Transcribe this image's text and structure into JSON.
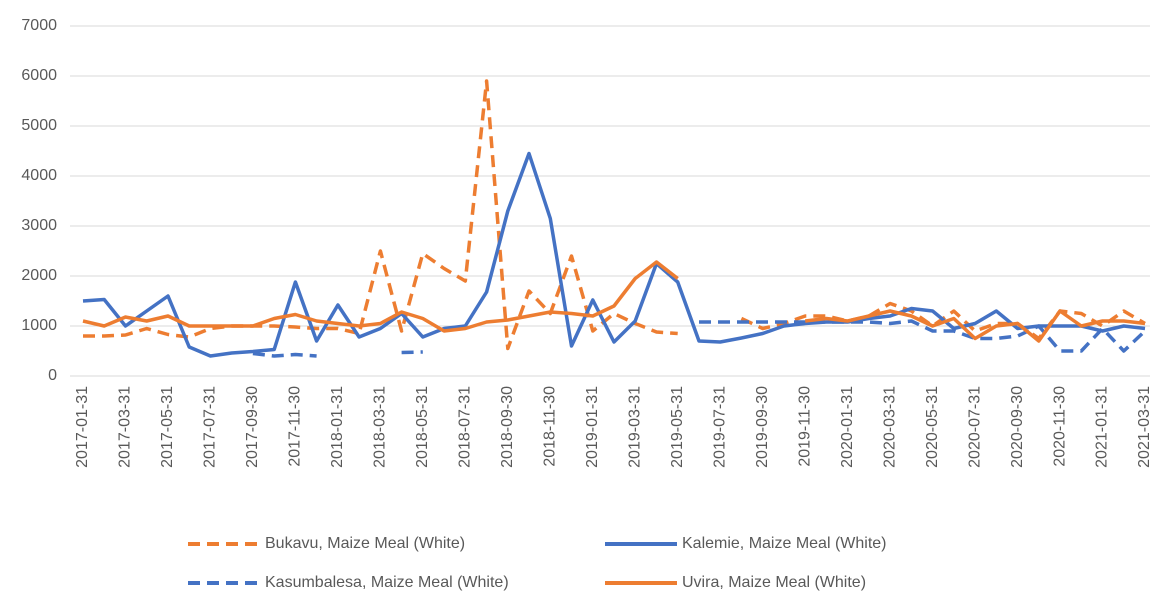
{
  "chart_data": {
    "type": "line",
    "categories": [
      "2017-01-31",
      null,
      "2017-03-31",
      null,
      "2017-05-31",
      null,
      "2017-07-31",
      null,
      "2017-09-30",
      null,
      "2017-11-30",
      null,
      "2018-01-31",
      null,
      "2018-03-31",
      null,
      "2018-05-31",
      null,
      "2018-07-31",
      null,
      "2018-09-30",
      null,
      "2018-11-30",
      null,
      "2019-01-31",
      null,
      "2019-03-31",
      null,
      "2019-05-31",
      null,
      "2019-07-31",
      null,
      "2019-09-30",
      null,
      "2019-11-30",
      null,
      "2020-01-31",
      null,
      "2020-03-31",
      null,
      "2020-05-31",
      null,
      "2020-07-31",
      null,
      "2020-09-30",
      null,
      "2020-11-30",
      null,
      "2021-01-31",
      null,
      "2021-03-31"
    ],
    "series": [
      {
        "name": "Bukavu, Maize Meal (White)",
        "color": "#ED7D31",
        "dashed": true,
        "values": [
          800,
          800,
          820,
          950,
          830,
          780,
          950,
          1000,
          1000,
          1000,
          980,
          950,
          950,
          850,
          2500,
          900,
          2450,
          2150,
          1900,
          5900,
          550,
          1700,
          1250,
          2400,
          900,
          1250,
          1050,
          880,
          850,
          null,
          null,
          1150,
          950,
          1050,
          1200,
          1200,
          1100,
          1200,
          1450,
          1300,
          1000,
          1300,
          900,
          1050,
          1050,
          750,
          1300,
          1250,
          1000,
          1300,
          1050
        ]
      },
      {
        "name": "Kalemie, Maize Meal (White)",
        "color": "#4472C4",
        "dashed": false,
        "values": [
          1500,
          1530,
          1000,
          1300,
          1600,
          580,
          400,
          460,
          490,
          530,
          1880,
          700,
          1420,
          780,
          950,
          1250,
          780,
          950,
          1000,
          1680,
          3300,
          4450,
          3150,
          600,
          1520,
          680,
          1100,
          2250,
          1880,
          700,
          680,
          760,
          850,
          1000,
          1050,
          1080,
          1080,
          1150,
          1200,
          1350,
          1300,
          950,
          1050,
          1300,
          950,
          1000,
          1000,
          1000,
          900,
          1000,
          950
        ]
      },
      {
        "name": "Kasumbalesa, Maize Meal (White)",
        "color": "#4472C4",
        "dashed": true,
        "values": [
          null,
          null,
          null,
          null,
          null,
          null,
          null,
          null,
          450,
          400,
          430,
          400,
          null,
          null,
          null,
          470,
          480,
          null,
          null,
          null,
          null,
          null,
          null,
          null,
          null,
          null,
          null,
          null,
          null,
          1080,
          1080,
          1080,
          1080,
          1080,
          1080,
          1080,
          1080,
          1080,
          1050,
          1100,
          900,
          900,
          750,
          750,
          800,
          1000,
          500,
          500,
          950,
          500,
          900
        ]
      },
      {
        "name": "Uvira, Maize Meal (White)",
        "color": "#ED7D31",
        "dashed": false,
        "values": [
          1100,
          1000,
          1180,
          1100,
          1200,
          1000,
          1000,
          1000,
          1000,
          1150,
          1230,
          1100,
          1050,
          1000,
          1050,
          1280,
          1150,
          900,
          950,
          1080,
          1120,
          1200,
          1280,
          1250,
          1200,
          1400,
          1950,
          2280,
          1950,
          null,
          null,
          null,
          null,
          null,
          1100,
          1150,
          1100,
          1200,
          1300,
          1200,
          1000,
          1150,
          750,
          1000,
          1050,
          700,
          1300,
          1000,
          1100,
          1100,
          1050
        ]
      }
    ],
    "ylim": [
      0,
      7000
    ],
    "yticks": [
      0,
      1000,
      2000,
      3000,
      4000,
      5000,
      6000,
      7000
    ],
    "grid": true,
    "legend": "bottom"
  }
}
